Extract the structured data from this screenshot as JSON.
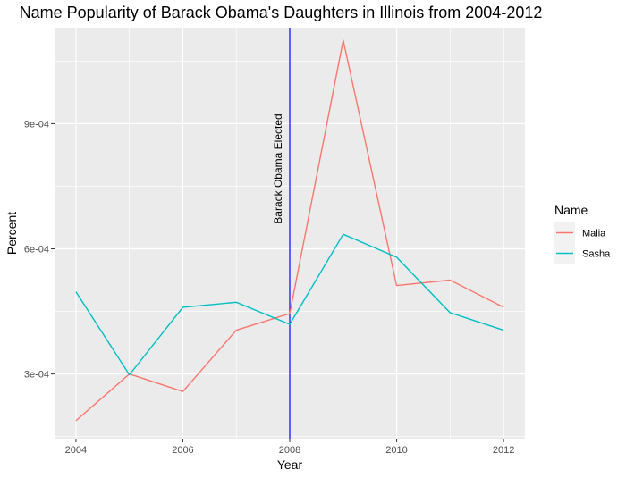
{
  "chart_data": {
    "type": "line",
    "title": "Name Popularity of Barack Obama's Daughters in Illinois from 2004-2012",
    "xlabel": "Year",
    "ylabel": "Percent",
    "x": [
      2004,
      2005,
      2006,
      2007,
      2008,
      2009,
      2010,
      2011,
      2012
    ],
    "xlim": [
      2003.6,
      2012.4
    ],
    "ylim": [
      0.000145,
      0.00113
    ],
    "x_ticks": [
      2004,
      2006,
      2008,
      2010,
      2012
    ],
    "x_tick_labels": [
      "2004",
      "2006",
      "2008",
      "2010",
      "2012"
    ],
    "y_ticks": [
      0.0003,
      0.0006,
      0.0009
    ],
    "y_tick_labels": [
      "3e-04",
      "6e-04",
      "9e-04"
    ],
    "grid": true,
    "legend_title": "Name",
    "legend_position": "right",
    "series": [
      {
        "name": "Malia",
        "color": "#F8766D",
        "values": [
          0.000188,
          0.0003,
          0.000258,
          0.000405,
          0.000445,
          0.0011,
          0.000512,
          0.000525,
          0.00046
        ]
      },
      {
        "name": "Sasha",
        "color": "#00BFC4",
        "values": [
          0.000497,
          0.000298,
          0.00046,
          0.000472,
          0.000419,
          0.000635,
          0.00058,
          0.000447,
          0.000405
        ]
      }
    ],
    "annotation": {
      "x": 2008,
      "label": "Barack Obama Elected",
      "color": "#0000FF"
    }
  }
}
